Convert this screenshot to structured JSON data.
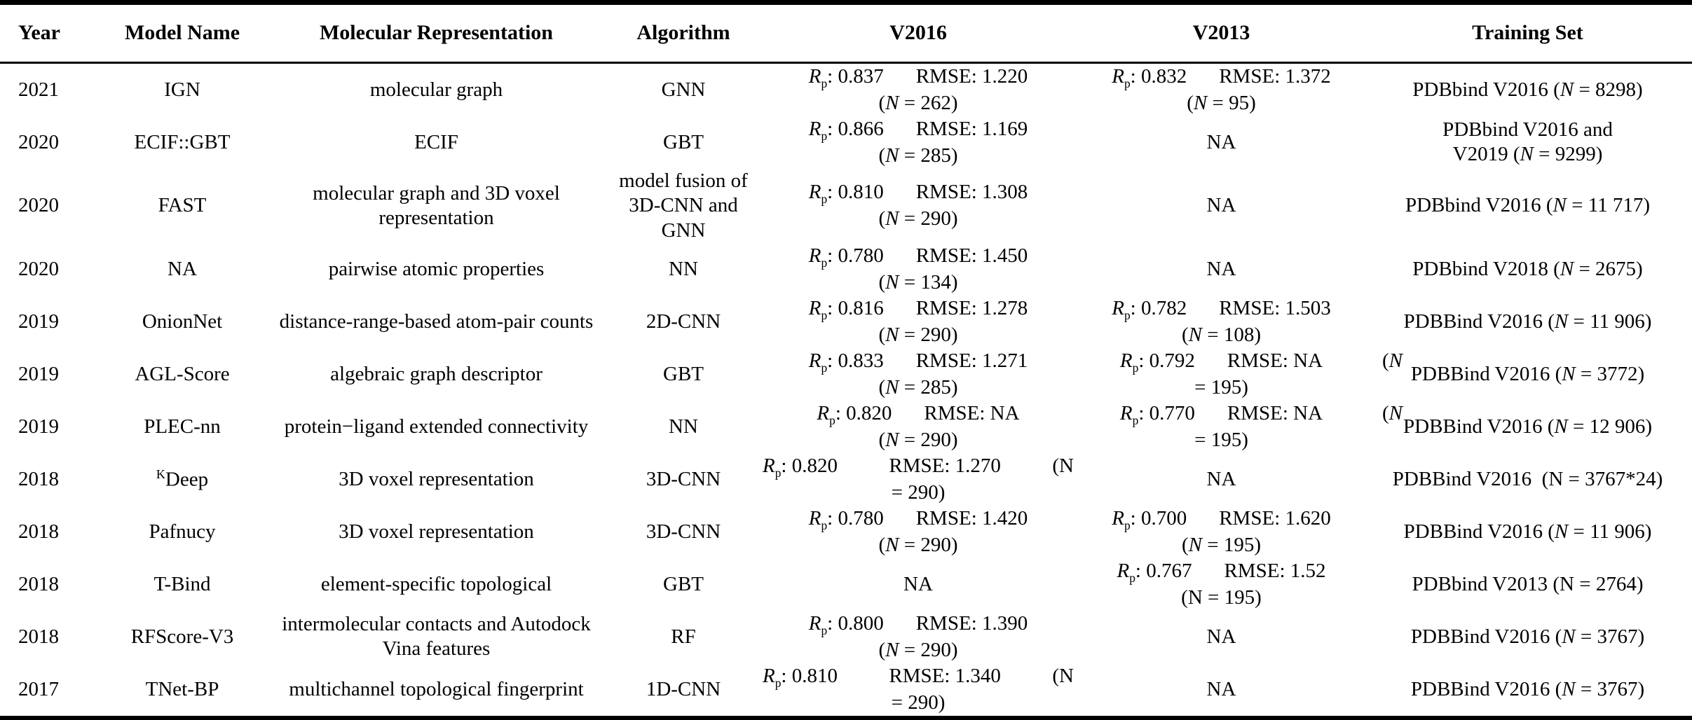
{
  "page": {
    "background": "#ffffff",
    "text_color": "#000000"
  },
  "table": {
    "headers": [
      "Year",
      "Model Name",
      "Molecular Representation",
      "Algorithm",
      "V2016",
      "V2013",
      "Training Set"
    ],
    "metric_labels": {
      "r": "R",
      "p": "p",
      "rmse": "RMSE",
      "n": "N",
      "na": "NA"
    },
    "rows": [
      {
        "year": "2021",
        "model": "IGN",
        "representation": "molecular graph",
        "algorithm": "GNN",
        "v2016": {
          "style": "normal",
          "rp": "0.837",
          "rmse": "1.220",
          "n": "262",
          "n_italic": true
        },
        "v2013": {
          "style": "normal",
          "rp": "0.832",
          "rmse": "1.372",
          "n": "95",
          "n_italic": true
        },
        "training": [
          {
            "t": "PDBbind V2016 ("
          },
          {
            "t": "N",
            "i": true
          },
          {
            "t": " = 8298)"
          }
        ]
      },
      {
        "year": "2020",
        "model": "ECIF::GBT",
        "representation": "ECIF",
        "algorithm": "GBT",
        "v2016": {
          "style": "normal",
          "rp": "0.866",
          "rmse": "1.169",
          "n": "285",
          "n_italic": true
        },
        "v2013": {
          "style": "na"
        },
        "training": [
          {
            "t": "PDBbind V2016 and"
          },
          {
            "br": true
          },
          {
            "t": "V2019 ("
          },
          {
            "t": "N",
            "i": true
          },
          {
            "t": " = 9299)"
          }
        ]
      },
      {
        "year": "2020",
        "model": "FAST",
        "representation": "molecular graph and 3D voxel representation",
        "algorithm": "model fusion of 3D-CNN and GNN",
        "v2016": {
          "style": "normal",
          "rp": "0.810",
          "rmse": "1.308",
          "n": "290",
          "n_italic": true
        },
        "v2013": {
          "style": "na"
        },
        "training": [
          {
            "t": "PDBbind V2016 ("
          },
          {
            "t": "N",
            "i": true
          },
          {
            "t": " = 11 717)"
          }
        ]
      },
      {
        "year": "2020",
        "model": "NA",
        "representation": "pairwise atomic properties",
        "algorithm": "NN",
        "v2016": {
          "style": "normal",
          "rp": "0.780",
          "rmse": "1.450",
          "n": "134",
          "n_italic": true
        },
        "v2013": {
          "style": "na"
        },
        "training": [
          {
            "t": "PDBbind V2018 ("
          },
          {
            "t": "N",
            "i": true
          },
          {
            "t": " = 2675)"
          }
        ]
      },
      {
        "year": "2019",
        "model": "OnionNet",
        "representation": "distance-range-based atom-pair counts",
        "algorithm": "2D-CNN",
        "v2016": {
          "style": "normal",
          "rp": "0.816",
          "rmse": "1.278",
          "n": "290",
          "n_italic": true
        },
        "v2013": {
          "style": "normal",
          "rp": "0.782",
          "rmse": "1.503",
          "n": "108",
          "n_italic": true
        },
        "training": [
          {
            "t": "PDBBind V2016 ("
          },
          {
            "t": "N",
            "i": true
          },
          {
            "t": " = 11 906)"
          }
        ]
      },
      {
        "year": "2019",
        "model": "AGL-Score",
        "representation": "algebraic graph descriptor",
        "algorithm": "GBT",
        "v2016": {
          "style": "normal",
          "rp": "0.833",
          "rmse": "1.271",
          "n": "285",
          "n_italic": true
        },
        "v2013": {
          "style": "hang-out",
          "rp": "0.792",
          "rmse": "NA",
          "n": "195",
          "n_italic": true
        },
        "training": [
          {
            "t": "PDBBind V2016 ("
          },
          {
            "t": "N",
            "i": true
          },
          {
            "t": " = 3772)"
          }
        ]
      },
      {
        "year": "2019",
        "model": "PLEC-nn",
        "representation": "protein−ligand extended connectivity",
        "algorithm": "NN",
        "v2016": {
          "style": "normal",
          "rp": "0.820",
          "rmse": "NA",
          "n": "290",
          "n_italic": true
        },
        "v2013": {
          "style": "hang-out",
          "rp": "0.770",
          "rmse": "NA",
          "n": "195",
          "n_italic": true
        },
        "training": [
          {
            "t": "PDBBind V2016 ("
          },
          {
            "t": "N",
            "i": true
          },
          {
            "t": " = 12 906)"
          }
        ]
      },
      {
        "year": "2018",
        "model_sup": "K",
        "model": "Deep",
        "representation": "3D voxel representation",
        "algorithm": "3D-CNN",
        "v2016": {
          "style": "hang-in",
          "rp": "0.820",
          "rmse": "1.270",
          "n": "290",
          "n_italic": false
        },
        "v2013": {
          "style": "na"
        },
        "training": [
          {
            "t": "PDBBind V2016  (N = 3767*24)"
          }
        ]
      },
      {
        "year": "2018",
        "model": "Pafnucy",
        "representation": "3D voxel representation",
        "algorithm": "3D-CNN",
        "v2016": {
          "style": "normal",
          "rp": "0.780",
          "rmse": "1.420",
          "n": "290",
          "n_italic": true
        },
        "v2013": {
          "style": "normal",
          "rp": "0.700",
          "rmse": "1.620",
          "n": "195",
          "n_italic": true
        },
        "training": [
          {
            "t": "PDBBind V2016 ("
          },
          {
            "t": "N",
            "i": true
          },
          {
            "t": " = 11 906)"
          }
        ]
      },
      {
        "year": "2018",
        "model": "T-Bind",
        "representation": "element-specific topological",
        "algorithm": "GBT",
        "v2016": {
          "style": "na"
        },
        "v2013": {
          "style": "normal",
          "rp": "0.767",
          "rmse": "1.52",
          "n": "195",
          "n_italic": false
        },
        "training": [
          {
            "t": "PDBbind V2013 (N = 2764)"
          }
        ]
      },
      {
        "year": "2018",
        "model": "RFScore-V3",
        "representation": "intermolecular contacts and Autodock Vina features",
        "algorithm": "RF",
        "v2016": {
          "style": "normal",
          "rp": "0.800",
          "rmse": "1.390",
          "n": "290",
          "n_italic": true
        },
        "v2013": {
          "style": "na"
        },
        "training": [
          {
            "t": "PDBBind V2016 ("
          },
          {
            "t": "N",
            "i": true
          },
          {
            "t": " = 3767)"
          }
        ]
      },
      {
        "year": "2017",
        "model": "TNet-BP",
        "representation": "multichannel topological fingerprint",
        "algorithm": "1D-CNN",
        "v2016": {
          "style": "hang-in",
          "rp": "0.810",
          "rmse": "1.340",
          "n": "290",
          "n_italic": false
        },
        "v2013": {
          "style": "na"
        },
        "training": [
          {
            "t": "PDBBind V2016 ("
          },
          {
            "t": "N",
            "i": true
          },
          {
            "t": " = 3767)"
          }
        ]
      }
    ]
  }
}
